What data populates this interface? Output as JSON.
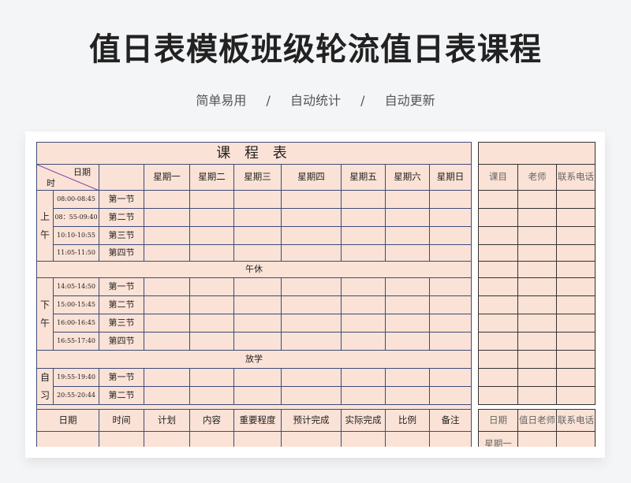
{
  "header": {
    "title": "值日表模板班级轮流值日表课程",
    "tags": [
      "简单易用",
      "自动统计",
      "自动更新"
    ],
    "separator": "/"
  },
  "schedule": {
    "title": "课 程 表",
    "corner_top": "日期",
    "corner_bottom": "时",
    "weekdays": [
      "星期一",
      "星期二",
      "星期三",
      "星期四",
      "星期五",
      "星期六",
      "星期日"
    ],
    "morning": {
      "label": "上午",
      "times": [
        "08:00-08:45",
        "08：55-09:40",
        "10:10-10:55",
        "11:05-11:50"
      ],
      "periods": [
        "第一节",
        "第二节",
        "第三节",
        "第四节"
      ]
    },
    "noon_break": "午休",
    "afternoon": {
      "label": "下午",
      "times": [
        "14:05-14:50",
        "15:00-15:45",
        "16:00-16:45",
        "16:55-17:40"
      ],
      "periods": [
        "第一节",
        "第二节",
        "第三节",
        "第四节"
      ]
    },
    "after_school": "放学",
    "self_study": {
      "label": "自习",
      "times": [
        "19:55-19:40",
        "20:55-20:44"
      ],
      "periods": [
        "第一节",
        "第二节"
      ]
    }
  },
  "plan_table": {
    "headers": [
      "日期",
      "时间",
      "计划",
      "内容",
      "重要程度",
      "预计完成",
      "实际完成",
      "比例",
      "备注"
    ]
  },
  "teacher_table": {
    "headers": [
      "课目",
      "老师",
      "联系电话"
    ]
  },
  "duty_table": {
    "headers": [
      "日期",
      "值日老师",
      "联系电话"
    ],
    "rows": [
      "星期一"
    ]
  },
  "colors": {
    "cell_bg": "#fbe2d6",
    "grid_line": "#3d4b78"
  }
}
